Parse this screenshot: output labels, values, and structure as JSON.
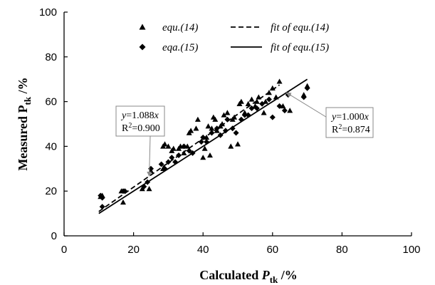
{
  "chart_data": {
    "type": "scatter",
    "xlabel": "Calculated P_tk /%",
    "ylabel": "Measured P_tk /%",
    "xlim": [
      0,
      100
    ],
    "ylim": [
      0,
      100
    ],
    "xticks": [
      0,
      20,
      40,
      60,
      80,
      100
    ],
    "yticks": [
      0,
      20,
      40,
      60,
      80,
      100
    ],
    "grid": false,
    "legend_position": "top",
    "legend": {
      "markers": [
        "equ.(14)",
        "eqa.(15)"
      ],
      "lines": [
        "fit of equ.(14)",
        "fit of equ.(15)"
      ]
    },
    "series": [
      {
        "name": "equ.(14)",
        "marker": "triangle",
        "points": [
          [
            10.5,
            17.5
          ],
          [
            11,
            18
          ],
          [
            16.5,
            20
          ],
          [
            17,
            15
          ],
          [
            22.5,
            21
          ],
          [
            24.5,
            21
          ],
          [
            25,
            29
          ],
          [
            28.5,
            30
          ],
          [
            28.5,
            40
          ],
          [
            29,
            41
          ],
          [
            30,
            40
          ],
          [
            31,
            38
          ],
          [
            31.5,
            39
          ],
          [
            33,
            39
          ],
          [
            33.5,
            40
          ],
          [
            34.5,
            37
          ],
          [
            35.5,
            40
          ],
          [
            36,
            46
          ],
          [
            36.5,
            47
          ],
          [
            38,
            48
          ],
          [
            38.5,
            52
          ],
          [
            40,
            35
          ],
          [
            40.5,
            39
          ],
          [
            41,
            44
          ],
          [
            41.5,
            49
          ],
          [
            42,
            36
          ],
          [
            42.5,
            48
          ],
          [
            43,
            53
          ],
          [
            43.5,
            52
          ],
          [
            44,
            47
          ],
          [
            45,
            49
          ],
          [
            45.5,
            50
          ],
          [
            46,
            54
          ],
          [
            47,
            55
          ],
          [
            48,
            40
          ],
          [
            48.5,
            52
          ],
          [
            49,
            53
          ],
          [
            50,
            41
          ],
          [
            50.5,
            59
          ],
          [
            51,
            60
          ],
          [
            52,
            55
          ],
          [
            53,
            59
          ],
          [
            54,
            61
          ],
          [
            55,
            58
          ],
          [
            55.5,
            60
          ],
          [
            56,
            62
          ],
          [
            57.5,
            55
          ],
          [
            58,
            60
          ],
          [
            59,
            64
          ],
          [
            60,
            66
          ],
          [
            61,
            62
          ],
          [
            62,
            69
          ],
          [
            63,
            58
          ],
          [
            65,
            56
          ],
          [
            69,
            63
          ],
          [
            70,
            67
          ]
        ]
      },
      {
        "name": "eqa.(15)",
        "marker": "diamond",
        "points": [
          [
            10.5,
            18
          ],
          [
            11,
            17
          ],
          [
            11,
            13
          ],
          [
            17,
            20
          ],
          [
            17.5,
            20
          ],
          [
            23,
            22
          ],
          [
            24,
            24
          ],
          [
            25,
            30
          ],
          [
            28,
            32
          ],
          [
            29,
            30
          ],
          [
            30,
            33
          ],
          [
            31,
            35
          ],
          [
            32,
            33
          ],
          [
            33,
            36
          ],
          [
            34.5,
            40
          ],
          [
            36,
            38
          ],
          [
            37,
            37
          ],
          [
            39.5,
            42
          ],
          [
            40,
            44
          ],
          [
            41,
            42
          ],
          [
            42.5,
            46
          ],
          [
            44,
            48
          ],
          [
            45,
            45
          ],
          [
            46.5,
            47
          ],
          [
            47,
            52
          ],
          [
            48.5,
            48
          ],
          [
            49.5,
            46
          ],
          [
            51,
            52
          ],
          [
            52,
            54
          ],
          [
            53,
            54
          ],
          [
            54,
            57
          ],
          [
            55.5,
            57
          ],
          [
            57,
            59
          ],
          [
            59,
            61
          ],
          [
            60,
            53
          ],
          [
            62,
            58
          ],
          [
            63.5,
            56
          ],
          [
            64.5,
            63
          ],
          [
            69,
            62
          ],
          [
            70,
            66
          ]
        ]
      }
    ],
    "fits": [
      {
        "name": "fit of equ.(14)",
        "style": "dashed",
        "slope": 1.088,
        "x_range": [
          10,
          62
        ],
        "label_line1": "y=1.088x",
        "label_line2": "R2=0.900"
      },
      {
        "name": "fit of equ.(15)",
        "style": "solid",
        "slope": 1.0,
        "x_range": [
          10,
          70
        ],
        "label_line1": "y=1.000x",
        "label_line2": "R2=0.874"
      }
    ]
  }
}
